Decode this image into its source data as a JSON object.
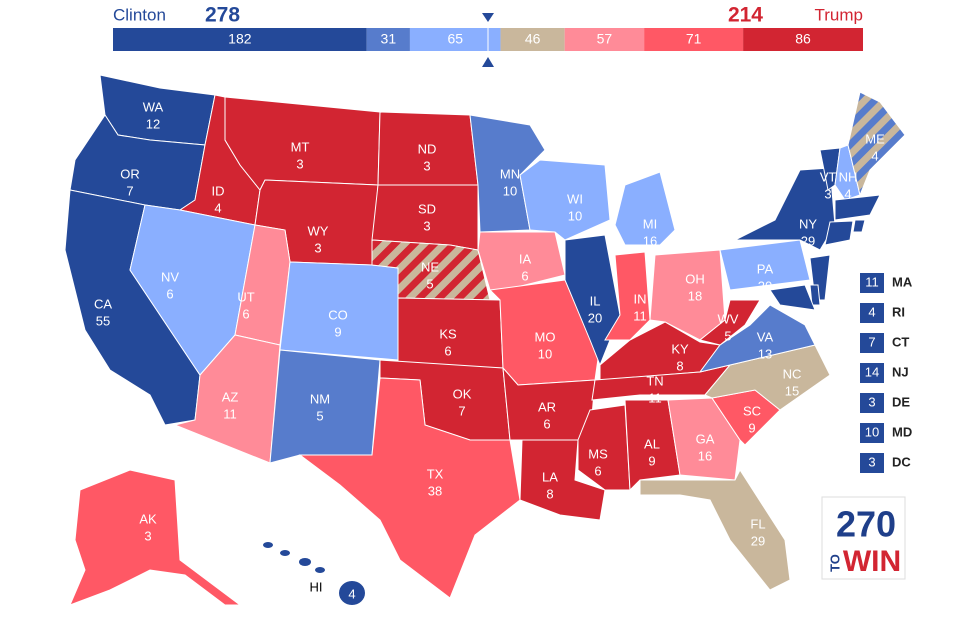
{
  "header": {
    "left_name": "Clinton",
    "left_total": "278",
    "right_total": "214",
    "right_name": "Trump"
  },
  "bar": {
    "segments": [
      {
        "value": 182,
        "color": "#244999"
      },
      {
        "value": 31,
        "color": "#577ccc"
      },
      {
        "value": 65,
        "color": "#8aafff"
      },
      {
        "value": 46,
        "color": "#c9b79c"
      },
      {
        "value": 57,
        "color": "#ff8b98"
      },
      {
        "value": 71,
        "color": "#ff5865"
      },
      {
        "value": 86,
        "color": "#d22532"
      }
    ]
  },
  "states": [
    {
      "abbr": "WA",
      "votes": "12",
      "color": "#244999"
    },
    {
      "abbr": "OR",
      "votes": "7",
      "color": "#244999"
    },
    {
      "abbr": "CA",
      "votes": "55",
      "color": "#244999"
    },
    {
      "abbr": "ID",
      "votes": "4",
      "color": "#d22532"
    },
    {
      "abbr": "NV",
      "votes": "6",
      "color": "#8aafff"
    },
    {
      "abbr": "MT",
      "votes": "3",
      "color": "#d22532"
    },
    {
      "abbr": "WY",
      "votes": "3",
      "color": "#d22532"
    },
    {
      "abbr": "UT",
      "votes": "6",
      "color": "#ff8b98"
    },
    {
      "abbr": "AZ",
      "votes": "11",
      "color": "#ff8b98"
    },
    {
      "abbr": "CO",
      "votes": "9",
      "color": "#8aafff"
    },
    {
      "abbr": "NM",
      "votes": "5",
      "color": "#577ccc"
    },
    {
      "abbr": "ND",
      "votes": "3",
      "color": "#d22532"
    },
    {
      "abbr": "SD",
      "votes": "3",
      "color": "#d22532"
    },
    {
      "abbr": "NE",
      "votes": "5",
      "color": [
        "#d22532",
        "#c9b79c"
      ]
    },
    {
      "abbr": "KS",
      "votes": "6",
      "color": "#d22532"
    },
    {
      "abbr": "OK",
      "votes": "7",
      "color": "#d22532"
    },
    {
      "abbr": "TX",
      "votes": "38",
      "color": "#ff5865"
    },
    {
      "abbr": "MN",
      "votes": "10",
      "color": "#577ccc"
    },
    {
      "abbr": "IA",
      "votes": "6",
      "color": "#ff8b98"
    },
    {
      "abbr": "MO",
      "votes": "10",
      "color": "#ff5865"
    },
    {
      "abbr": "AR",
      "votes": "6",
      "color": "#d22532"
    },
    {
      "abbr": "LA",
      "votes": "8",
      "color": "#d22532"
    },
    {
      "abbr": "WI",
      "votes": "10",
      "color": "#8aafff"
    },
    {
      "abbr": "IL",
      "votes": "20",
      "color": "#244999"
    },
    {
      "abbr": "MI",
      "votes": "16",
      "color": "#8aafff"
    },
    {
      "abbr": "IN",
      "votes": "11",
      "color": "#ff5865"
    },
    {
      "abbr": "OH",
      "votes": "18",
      "color": "#ff8b98"
    },
    {
      "abbr": "KY",
      "votes": "8",
      "color": "#d22532"
    },
    {
      "abbr": "TN",
      "votes": "11",
      "color": "#d22532"
    },
    {
      "abbr": "MS",
      "votes": "6",
      "color": "#d22532"
    },
    {
      "abbr": "AL",
      "votes": "9",
      "color": "#d22532"
    },
    {
      "abbr": "GA",
      "votes": "16",
      "color": "#ff8b98"
    },
    {
      "abbr": "FL",
      "votes": "29",
      "color": "#c9b79c"
    },
    {
      "abbr": "SC",
      "votes": "9",
      "color": "#ff5865"
    },
    {
      "abbr": "NC",
      "votes": "15",
      "color": "#c9b79c"
    },
    {
      "abbr": "VA",
      "votes": "13",
      "color": "#577ccc"
    },
    {
      "abbr": "WV",
      "votes": "5",
      "color": "#d22532"
    },
    {
      "abbr": "PA",
      "votes": "20",
      "color": "#8aafff"
    },
    {
      "abbr": "NY",
      "votes": "29",
      "color": "#244999"
    },
    {
      "abbr": "VT",
      "votes": "3",
      "color": "#244999"
    },
    {
      "abbr": "NH",
      "votes": "4",
      "color": "#8aafff"
    },
    {
      "abbr": "ME",
      "votes": "4",
      "color": [
        "#577ccc",
        "#c9b79c"
      ]
    },
    {
      "abbr": "AK",
      "votes": "3",
      "color": "#ff5865"
    },
    {
      "abbr": "HI",
      "votes": "4",
      "color": "#244999"
    }
  ],
  "small_states": [
    {
      "abbr": "MA",
      "votes": "11",
      "color": "#244999"
    },
    {
      "abbr": "RI",
      "votes": "4",
      "color": "#244999"
    },
    {
      "abbr": "CT",
      "votes": "7",
      "color": "#244999"
    },
    {
      "abbr": "NJ",
      "votes": "14",
      "color": "#244999"
    },
    {
      "abbr": "DE",
      "votes": "3",
      "color": "#244999"
    },
    {
      "abbr": "MD",
      "votes": "10",
      "color": "#244999"
    },
    {
      "abbr": "DC",
      "votes": "3",
      "color": "#244999"
    }
  ],
  "logo": {
    "top": "270",
    "side": "TO",
    "bottom": "WIN"
  }
}
